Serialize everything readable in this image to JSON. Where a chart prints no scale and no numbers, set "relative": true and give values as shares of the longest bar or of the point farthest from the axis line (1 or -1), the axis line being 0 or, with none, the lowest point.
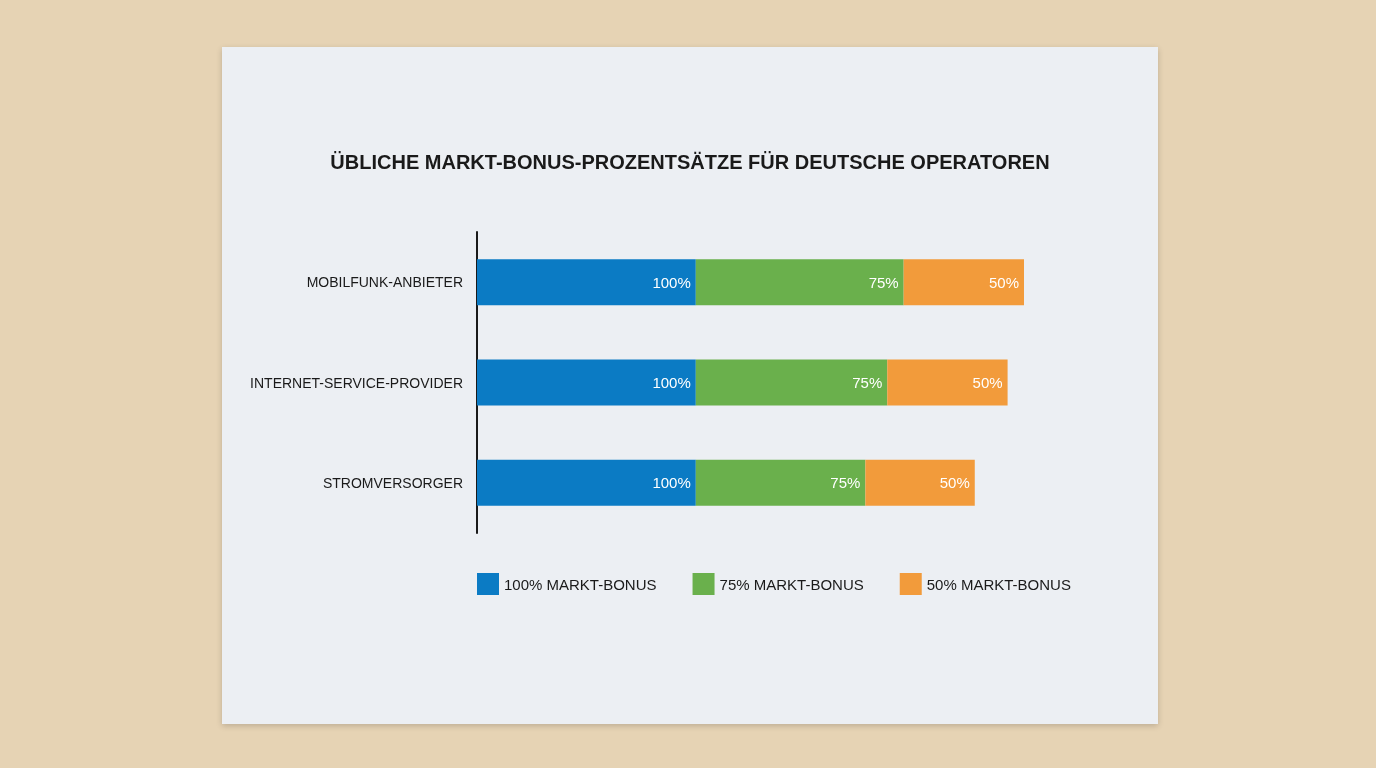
{
  "chart_data": {
    "type": "bar",
    "orientation": "horizontal",
    "stacked": true,
    "relative": true,
    "title": "ÜBLICHE MARKT-BONUS-PROZENTSÄTZE FÜR DEUTSCHE OPERATOREN",
    "categories": [
      "MOBILFUNK-ANBIETER",
      "INTERNET-SERVICE-PROVIDER",
      "STROMVERSORGER"
    ],
    "series": [
      {
        "name": "100% MARKT-BONUS",
        "color": "#0b7bc4",
        "values": [
          0.4,
          0.4,
          0.4
        ]
      },
      {
        "name": "75% MARKT-BONUS",
        "color": "#6ab04c",
        "values": [
          0.38,
          0.35,
          0.31
        ]
      },
      {
        "name": "50% MARKT-BONUS",
        "color": "#f29b3b",
        "values": [
          0.22,
          0.22,
          0.2
        ]
      }
    ],
    "annotations": [
      {
        "text": "100%",
        "x": 0.4,
        "y": "MOBILFUNK-ANBIETER"
      },
      {
        "text": "75%",
        "x": 0.78,
        "y": "MOBILFUNK-ANBIETER"
      },
      {
        "text": "50%",
        "x": 1.0,
        "y": "MOBILFUNK-ANBIETER"
      },
      {
        "text": "100%",
        "x": 0.4,
        "y": "INTERNET-SERVICE-PROVIDER"
      },
      {
        "text": "75%",
        "x": 0.75,
        "y": "INTERNET-SERVICE-PROVIDER"
      },
      {
        "text": "50%",
        "x": 0.97,
        "y": "INTERNET-SERVICE-PROVIDER"
      },
      {
        "text": "100%",
        "x": 0.4,
        "y": "STROMVERSORGER"
      },
      {
        "text": "75%",
        "x": 0.71,
        "y": "STROMVERSORGER"
      },
      {
        "text": "50%",
        "x": 0.91,
        "y": "STROMVERSORGER"
      }
    ],
    "legend": "bottom"
  }
}
